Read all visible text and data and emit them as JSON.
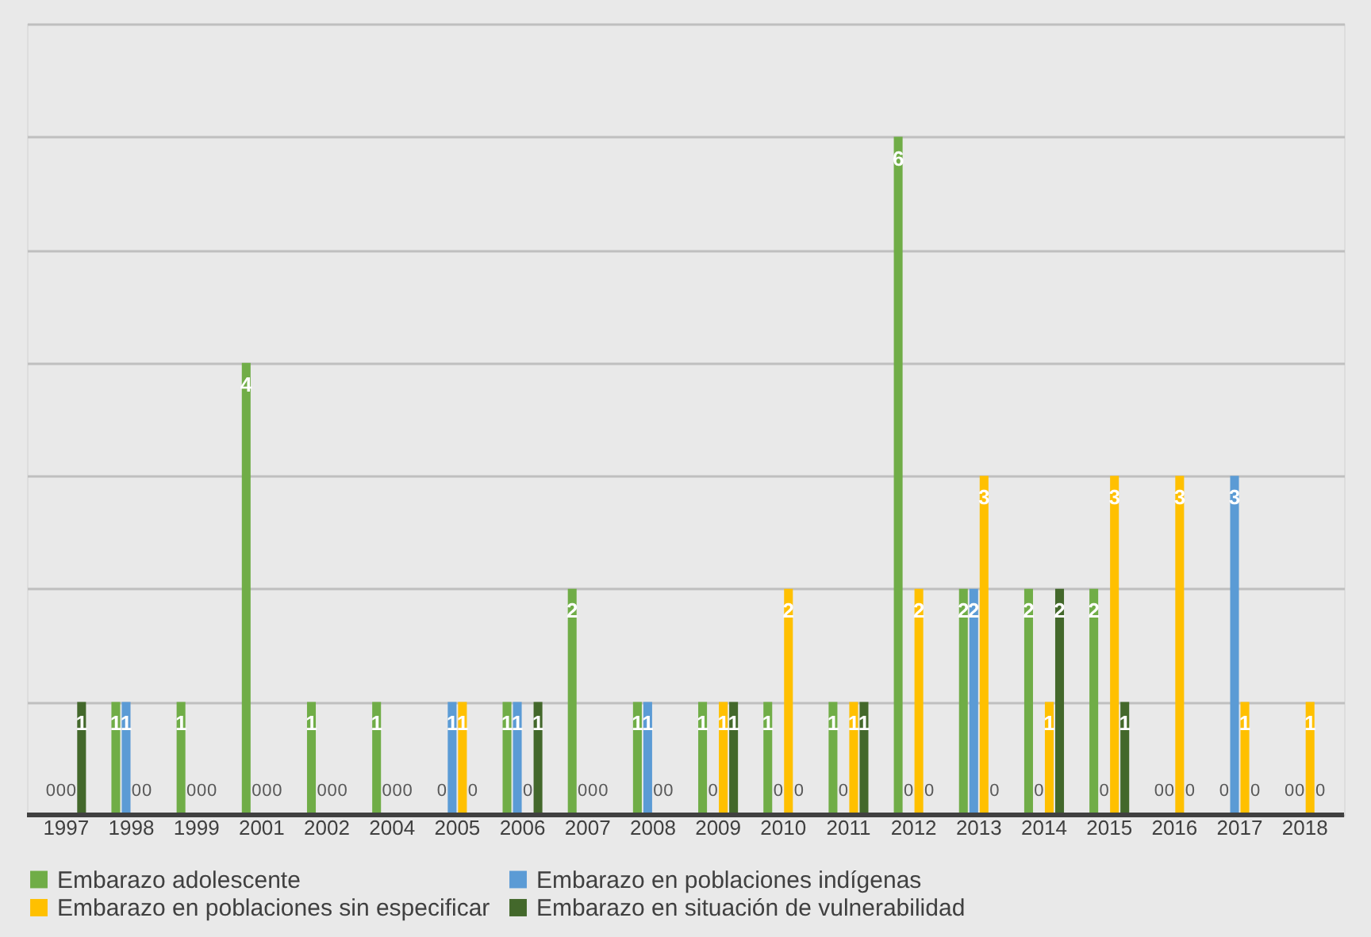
{
  "chart_data": {
    "type": "bar",
    "categories": [
      "1997",
      "1998",
      "1999",
      "2001",
      "2002",
      "2004",
      "2005",
      "2006",
      "2007",
      "2008",
      "2009",
      "2010",
      "2011",
      "2012",
      "2013",
      "2014",
      "2015",
      "2016",
      "2017",
      "2018"
    ],
    "series": [
      {
        "name": "Embarazo adolescente",
        "color": "#70ad47",
        "values": [
          0,
          1,
          1,
          4,
          1,
          1,
          0,
          1,
          2,
          1,
          1,
          1,
          1,
          6,
          2,
          2,
          2,
          0,
          0,
          0
        ]
      },
      {
        "name": "Embarazo en poblaciones indígenas",
        "color": "#5b9bd5",
        "values": [
          0,
          1,
          0,
          0,
          0,
          0,
          1,
          1,
          0,
          1,
          0,
          0,
          0,
          0,
          2,
          0,
          0,
          0,
          3,
          0
        ]
      },
      {
        "name": "Embarazo en poblaciones sin especificar",
        "color": "#ffc000",
        "values": [
          0,
          0,
          0,
          0,
          0,
          0,
          1,
          0,
          0,
          0,
          1,
          2,
          1,
          2,
          3,
          1,
          3,
          3,
          1,
          1
        ]
      },
      {
        "name": "Embarazo en situación de vulnerabilidad",
        "color": "#43682b",
        "values": [
          1,
          0,
          0,
          0,
          0,
          0,
          0,
          1,
          0,
          0,
          1,
          0,
          1,
          0,
          0,
          2,
          1,
          0,
          0,
          0
        ]
      }
    ],
    "ylim": [
      0,
      7
    ],
    "yticks": [
      {
        "value": 0,
        "label": null
      },
      {
        "value": 1,
        "label": null
      },
      {
        "value": 2,
        "label": null
      },
      {
        "value": 3,
        "label": null
      },
      {
        "value": 4,
        "label": null
      },
      {
        "value": 5,
        "label": null
      },
      {
        "value": 6,
        "label": null
      },
      {
        "value": 7,
        "label": null
      }
    ],
    "grid": "y",
    "legend": "bottom",
    "data_labels": true,
    "tick_labels": "x"
  }
}
